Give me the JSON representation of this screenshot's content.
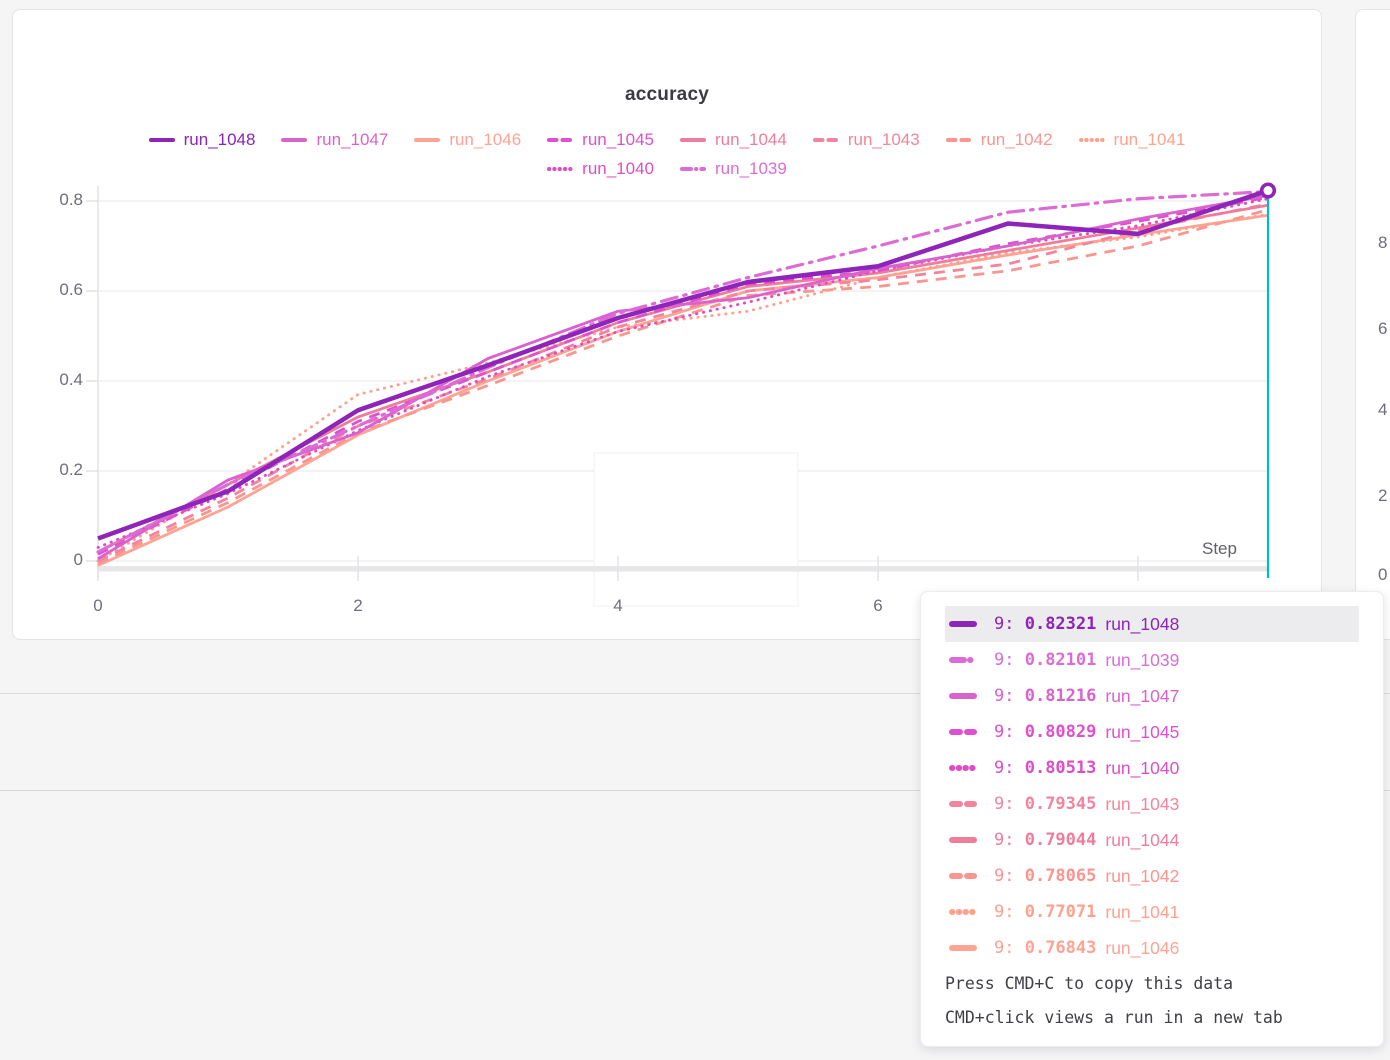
{
  "panel": {
    "title": "accuracy",
    "x_axis_label": "Step",
    "x_ticks": [
      "0",
      "2",
      "4",
      "6",
      "8"
    ],
    "y_ticks": [
      "0",
      "0.2",
      "0.4",
      "0.6",
      "0.8"
    ]
  },
  "chart_data": {
    "type": "line",
    "title": "accuracy",
    "xlabel": "Step",
    "ylabel": "",
    "x": [
      0,
      1,
      2,
      3,
      4,
      5,
      6,
      7,
      8,
      9
    ],
    "xlim": [
      0,
      9
    ],
    "ylim": [
      0,
      0.875
    ],
    "grid": true,
    "legend_position": "top",
    "cursor": {
      "step": 9,
      "color": "#00bccb"
    },
    "series": [
      {
        "name": "run_1048",
        "color": "#8e24b8",
        "dash": "solid",
        "emphasis": true,
        "values": [
          0.05,
          0.155,
          0.335,
          0.435,
          0.54,
          0.62,
          0.655,
          0.75,
          0.727,
          0.82321
        ]
      },
      {
        "name": "run_1047",
        "color": "#d962cf",
        "dash": "solid",
        "values": [
          0.005,
          0.18,
          0.285,
          0.45,
          0.555,
          0.585,
          0.65,
          0.7,
          0.76,
          0.81216
        ]
      },
      {
        "name": "run_1046",
        "color": "#ffa394",
        "dash": "solid",
        "values": [
          -0.01,
          0.12,
          0.28,
          0.4,
          0.51,
          0.6,
          0.63,
          0.68,
          0.725,
          0.76843
        ]
      },
      {
        "name": "run_1045",
        "color": "#de50ce",
        "dash": "dashed",
        "values": [
          0.015,
          0.16,
          0.31,
          0.42,
          0.53,
          0.615,
          0.645,
          0.705,
          0.755,
          0.80829
        ]
      },
      {
        "name": "run_1044",
        "color": "#f07c9b",
        "dash": "solid",
        "values": [
          0.02,
          0.17,
          0.32,
          0.42,
          0.53,
          0.61,
          0.64,
          0.69,
          0.74,
          0.79044
        ]
      },
      {
        "name": "run_1043",
        "color": "#f2859d",
        "dash": "dashed",
        "values": [
          0.0,
          0.14,
          0.3,
          0.405,
          0.52,
          0.6,
          0.625,
          0.66,
          0.735,
          0.79345
        ]
      },
      {
        "name": "run_1042",
        "color": "#fa958f",
        "dash": "dashed",
        "values": [
          -0.005,
          0.13,
          0.285,
          0.39,
          0.5,
          0.59,
          0.61,
          0.645,
          0.7,
          0.78065
        ]
      },
      {
        "name": "run_1041",
        "color": "#ffa18c",
        "dash": "dotted",
        "values": [
          0.0,
          0.17,
          0.37,
          0.44,
          0.52,
          0.555,
          0.63,
          0.685,
          0.72,
          0.77071
        ]
      },
      {
        "name": "run_1040",
        "color": "#dd4ec6",
        "dash": "dotted",
        "values": [
          0.03,
          0.15,
          0.29,
          0.41,
          0.51,
          0.575,
          0.645,
          0.7,
          0.745,
          0.80513
        ]
      },
      {
        "name": "run_1039",
        "color": "#db6cd6",
        "dash": "dashdot",
        "values": [
          0.02,
          0.17,
          0.3,
          0.43,
          0.55,
          0.63,
          0.7,
          0.775,
          0.805,
          0.82101
        ]
      }
    ]
  },
  "legend": {
    "row1": [
      "run_1048",
      "run_1047",
      "run_1046",
      "run_1045",
      "run_1044",
      "run_1043",
      "run_1042",
      "run_1041"
    ],
    "row2": [
      "run_1040",
      "run_1039"
    ]
  },
  "tooltip": {
    "rows": [
      {
        "step": "9",
        "value": "0.82321",
        "run": "run_1048",
        "highlighted": true
      },
      {
        "step": "9",
        "value": "0.82101",
        "run": "run_1039"
      },
      {
        "step": "9",
        "value": "0.81216",
        "run": "run_1047"
      },
      {
        "step": "9",
        "value": "0.80829",
        "run": "run_1045"
      },
      {
        "step": "9",
        "value": "0.80513",
        "run": "run_1040"
      },
      {
        "step": "9",
        "value": "0.79345",
        "run": "run_1043"
      },
      {
        "step": "9",
        "value": "0.79044",
        "run": "run_1044"
      },
      {
        "step": "9",
        "value": "0.78065",
        "run": "run_1042"
      },
      {
        "step": "9",
        "value": "0.77071",
        "run": "run_1041"
      },
      {
        "step": "9",
        "value": "0.76843",
        "run": "run_1046"
      }
    ],
    "footer": [
      "Press CMD+C to copy this data",
      "CMD+click views a run in a new tab"
    ]
  },
  "right_panel": {
    "y_ticks": [
      "8",
      "6",
      "4",
      "2",
      "0"
    ]
  }
}
